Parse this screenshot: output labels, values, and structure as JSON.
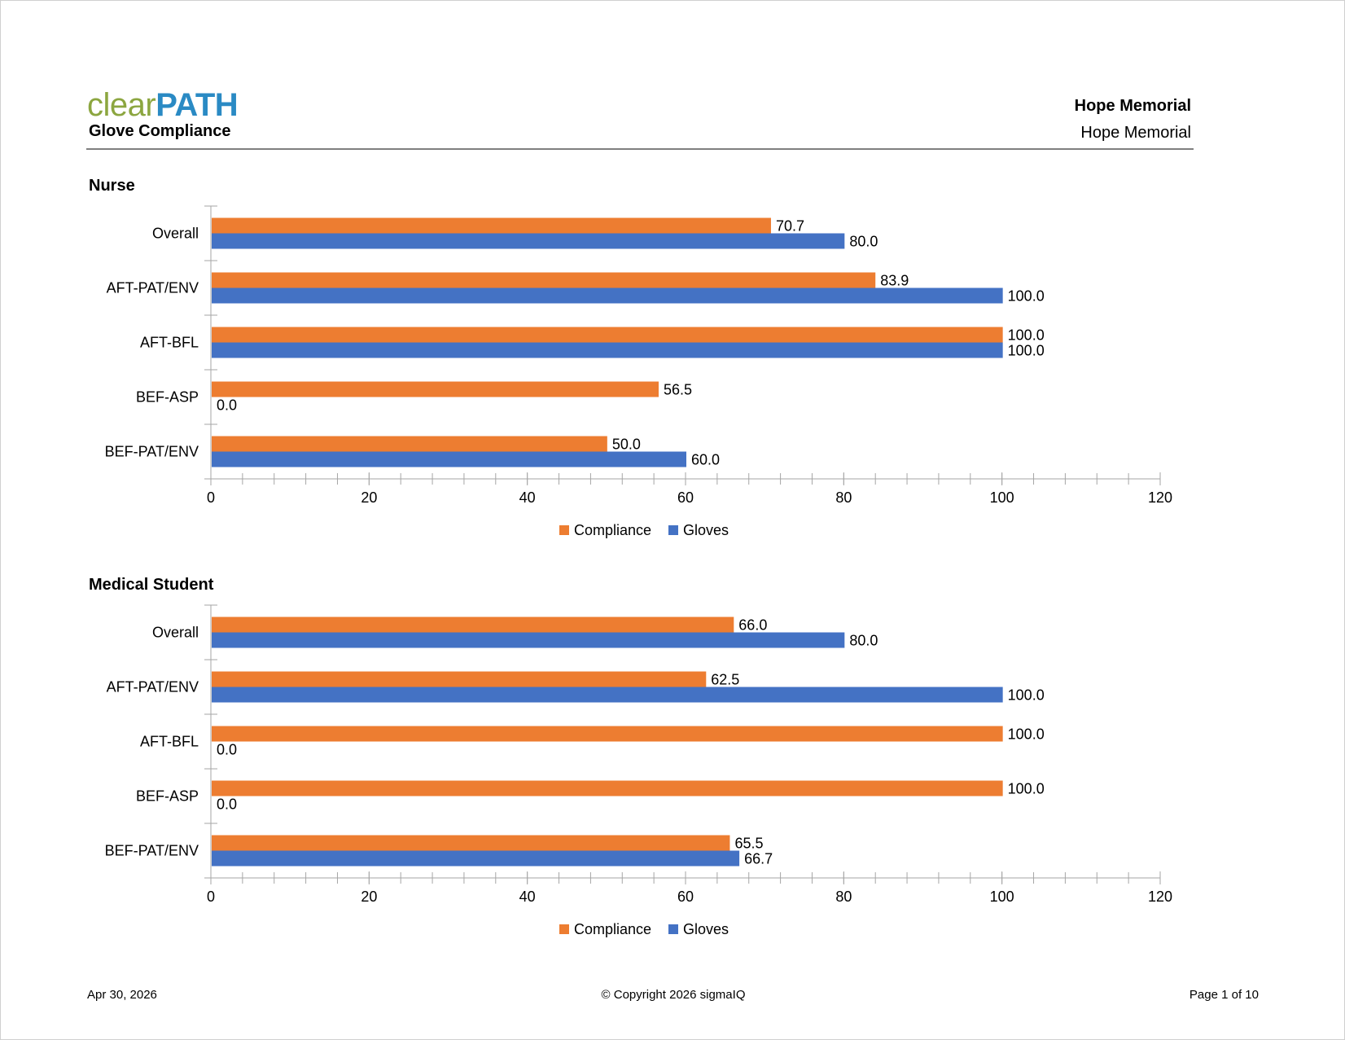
{
  "header": {
    "logo_text_a": "clear",
    "logo_text_b": "PATH",
    "report_title": "Glove Compliance",
    "org_name_bold": "Hope Memorial",
    "org_name": "Hope Memorial"
  },
  "footer": {
    "date": "Apr 30, 2026",
    "copyright": "© Copyright 2026 sigmaIQ",
    "page": "Page 1 of 10"
  },
  "colors": {
    "compliance": "#ED7D31",
    "gloves": "#4472C4",
    "axis": "#a6a6a6"
  },
  "chart_data": [
    {
      "type": "bar",
      "orientation": "horizontal",
      "title": "Nurse",
      "categories": [
        "Overall",
        "AFT-PAT/ENV",
        "AFT-BFL",
        "BEF-ASP",
        "BEF-PAT/ENV"
      ],
      "series": [
        {
          "name": "Compliance",
          "values": [
            70.7,
            83.9,
            100.0,
            56.5,
            50.0
          ]
        },
        {
          "name": "Gloves",
          "values": [
            80.0,
            100.0,
            100.0,
            0.0,
            60.0
          ]
        }
      ],
      "xlim": [
        0,
        120
      ],
      "xticks": [
        0,
        20,
        40,
        60,
        80,
        100,
        120
      ],
      "legend": "bottom",
      "grid": false
    },
    {
      "type": "bar",
      "orientation": "horizontal",
      "title": "Medical Student",
      "categories": [
        "Overall",
        "AFT-PAT/ENV",
        "AFT-BFL",
        "BEF-ASP",
        "BEF-PAT/ENV"
      ],
      "series": [
        {
          "name": "Compliance",
          "values": [
            66.0,
            62.5,
            100.0,
            100.0,
            65.5
          ]
        },
        {
          "name": "Gloves",
          "values": [
            80.0,
            100.0,
            0.0,
            0.0,
            66.7
          ]
        }
      ],
      "xlim": [
        0,
        120
      ],
      "xticks": [
        0,
        20,
        40,
        60,
        80,
        100,
        120
      ],
      "legend": "bottom",
      "grid": false
    }
  ]
}
